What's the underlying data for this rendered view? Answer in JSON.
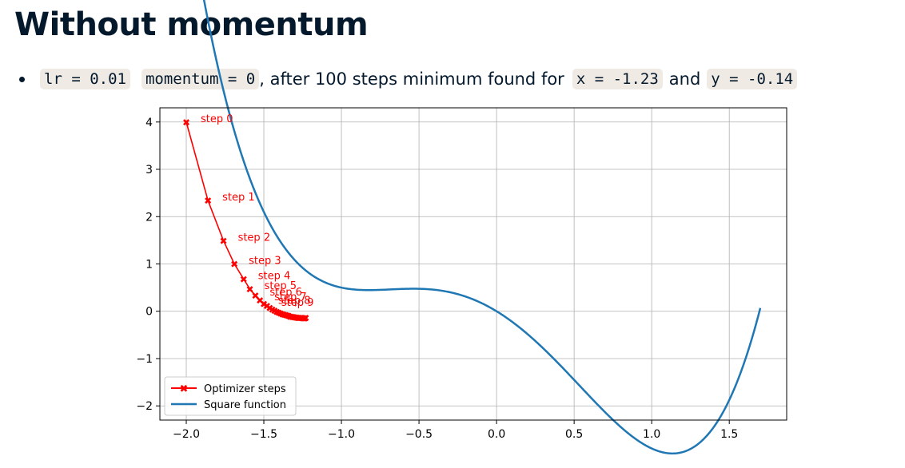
{
  "slide": {
    "title": "Without momentum",
    "bullet": {
      "code_lr": "lr = 0.01",
      "code_momentum": "momentum = 0",
      "text_1": ", after 100 steps minimum found for",
      "code_x": "x = -1.23",
      "text_2": "and",
      "code_y": "y = -0.14"
    }
  },
  "chart_data": {
    "type": "line",
    "xlim": [
      -2.17,
      1.87
    ],
    "ylim": [
      -2.3,
      4.3
    ],
    "xticks": [
      -2.0,
      -1.5,
      -1.0,
      -0.5,
      0.0,
      0.5,
      1.0,
      1.5
    ],
    "xtick_labels": [
      "−2.0",
      "−1.5",
      "−1.0",
      "−0.5",
      "0.0",
      "0.5",
      "1.0",
      "1.5"
    ],
    "yticks": [
      4,
      3,
      2,
      1,
      0,
      -1,
      -2
    ],
    "ytick_labels": [
      "4",
      "3",
      "2",
      "1",
      "0",
      "−1",
      "−2"
    ],
    "grid": true,
    "legend_placement": "lower-left",
    "series": [
      {
        "name": "Optimizer steps",
        "color": "#ff0000",
        "marker": "X",
        "x": [
          -2.0,
          -1.86,
          -1.76,
          -1.69,
          -1.63,
          -1.59,
          -1.555,
          -1.525,
          -1.5,
          -1.48,
          -1.462,
          -1.446,
          -1.431,
          -1.417,
          -1.404,
          -1.392,
          -1.38,
          -1.369,
          -1.359,
          -1.349,
          -1.34,
          -1.331,
          -1.322,
          -1.314,
          -1.306,
          -1.298,
          -1.29,
          -1.283,
          -1.276,
          -1.269,
          -1.262,
          -1.255,
          -1.248,
          -1.241,
          -1.235,
          -1.23
        ],
        "y": [
          4.0,
          2.34,
          1.49,
          1.0,
          0.68,
          0.47,
          0.33,
          0.23,
          0.16,
          0.11,
          0.07,
          0.04,
          0.01,
          -0.01,
          -0.03,
          -0.05,
          -0.06,
          -0.07,
          -0.08,
          -0.09,
          -0.1,
          -0.11,
          -0.115,
          -0.12,
          -0.125,
          -0.13,
          -0.133,
          -0.136,
          -0.138,
          -0.14,
          -0.142,
          -0.143,
          -0.144,
          -0.145,
          -0.145,
          -0.14
        ]
      },
      {
        "name": "Square function",
        "color": "#1f77b4"
      }
    ],
    "step_labels": [
      {
        "text": "step 0",
        "x": -2.0,
        "y": 4.0
      },
      {
        "text": "step 1",
        "x": -1.86,
        "y": 2.34
      },
      {
        "text": "step 2",
        "x": -1.76,
        "y": 1.49
      },
      {
        "text": "step 3",
        "x": -1.69,
        "y": 1.0
      },
      {
        "text": "step 4",
        "x": -1.63,
        "y": 0.68
      },
      {
        "text": "step 5",
        "x": -1.59,
        "y": 0.47
      },
      {
        "text": "step 6",
        "x": -1.555,
        "y": 0.33
      },
      {
        "text": "step 7",
        "x": -1.525,
        "y": 0.23
      },
      {
        "text": "step 8",
        "x": -1.5,
        "y": 0.16
      },
      {
        "text": "step 9",
        "x": -1.48,
        "y": 0.11
      }
    ]
  }
}
